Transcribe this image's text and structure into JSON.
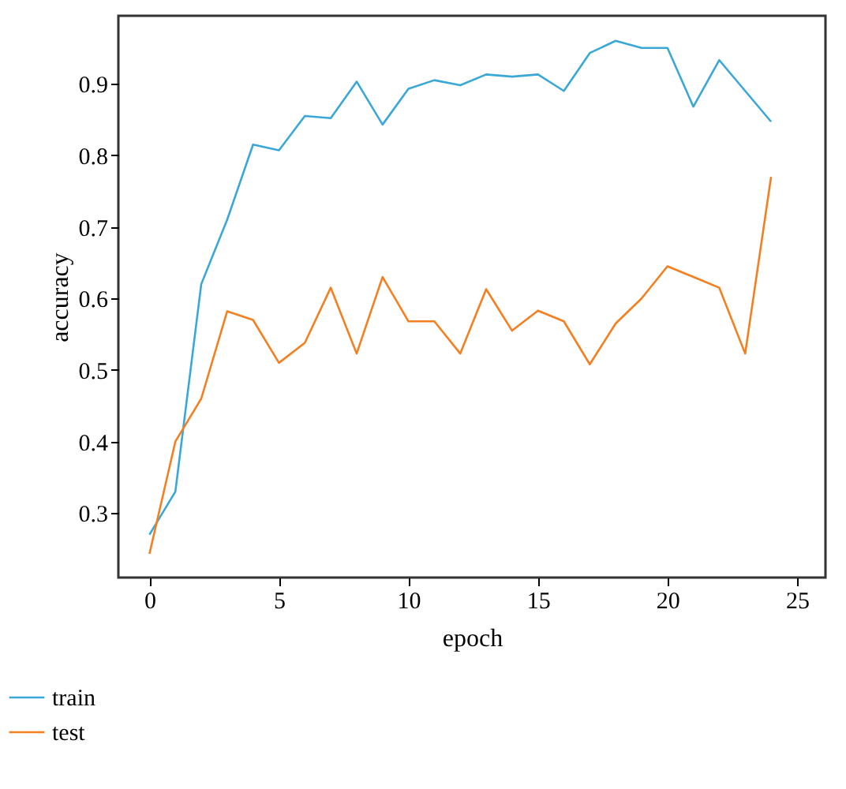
{
  "chart_data": {
    "type": "line",
    "xlabel": "epoch",
    "ylabel": "accuracy",
    "x": [
      0,
      1,
      2,
      3,
      4,
      5,
      6,
      7,
      8,
      9,
      10,
      11,
      12,
      13,
      14,
      15,
      16,
      17,
      18,
      19,
      20,
      21,
      22,
      23,
      24
    ],
    "series": [
      {
        "name": "train",
        "color": "#3aa8d6",
        "values": [
          0.27,
          0.33,
          0.62,
          0.71,
          0.815,
          0.807,
          0.855,
          0.852,
          0.903,
          0.843,
          0.893,
          0.905,
          0.898,
          0.913,
          0.91,
          0.913,
          0.89,
          0.943,
          0.96,
          0.95,
          0.95,
          0.868,
          0.933,
          0.89,
          0.847
        ]
      },
      {
        "name": "test",
        "color": "#f47f20",
        "values": [
          0.243,
          0.4,
          0.46,
          0.582,
          0.57,
          0.51,
          0.538,
          0.615,
          0.523,
          0.63,
          0.568,
          0.568,
          0.523,
          0.613,
          0.555,
          0.583,
          0.568,
          0.508,
          0.565,
          0.6,
          0.645,
          0.63,
          0.615,
          0.523,
          0.77
        ]
      }
    ],
    "xlim": [
      -1.2,
      26.1
    ],
    "xticks": [
      0,
      5,
      10,
      15,
      20,
      25
    ],
    "ylim": [
      0.21,
      0.995
    ],
    "yticks": [
      0.3,
      0.4,
      0.5,
      0.6,
      0.7,
      0.8,
      0.9
    ],
    "grid": false,
    "legend": "bottom left",
    "marker": "none",
    "line_style": "solid"
  }
}
